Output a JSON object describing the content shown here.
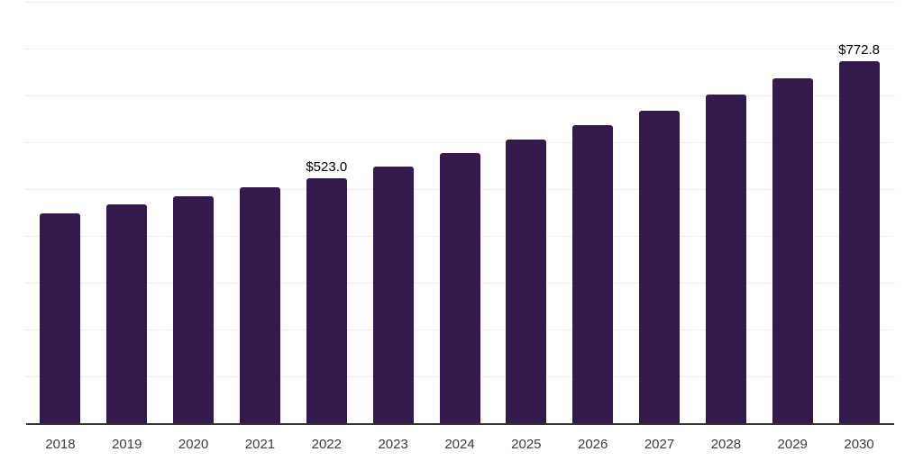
{
  "chart": {
    "background_color": "#ffffff",
    "bar_color": "#33194c",
    "grid_color": "#ededed",
    "axis_color": "#333333",
    "tick_label_color": "#3d3d3d",
    "value_label_color": "#000000"
  },
  "chart_data": {
    "type": "bar",
    "title": "",
    "xlabel": "",
    "ylabel": "",
    "categories": [
      "2018",
      "2019",
      "2020",
      "2021",
      "2022",
      "2023",
      "2024",
      "2025",
      "2026",
      "2027",
      "2028",
      "2029",
      "2030"
    ],
    "values": [
      449,
      467,
      485,
      503,
      523.0,
      549,
      577,
      605,
      636,
      668,
      701,
      736,
      772.8
    ],
    "ylim": [
      0,
      900
    ],
    "grid": true,
    "grid_step": 100,
    "legend_position": "none",
    "annotations": [
      {
        "category": "2022",
        "text": "$523.0"
      },
      {
        "category": "2030",
        "text": "$772.8"
      }
    ]
  }
}
